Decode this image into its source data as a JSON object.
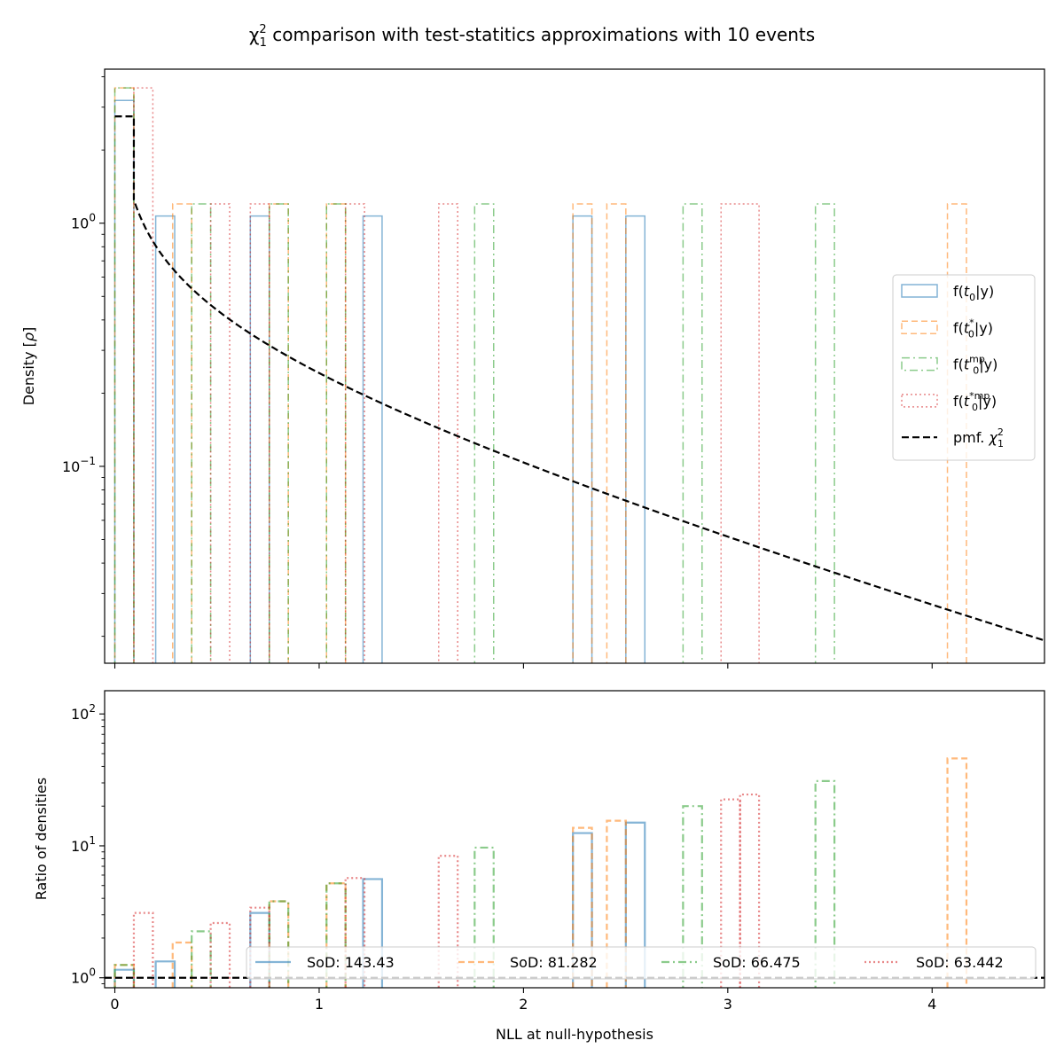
{
  "chart_data": [
    {
      "type": "histogram",
      "panel": "top",
      "title": "χ²₁ comparison with test-statitics approximations with 10 events",
      "title_parts": {
        "pre": "χ",
        "sup": "2",
        "sub": "1",
        "post": " comparison with test-statitics approximations with 10 events"
      },
      "xlabel": "",
      "ylabel": "Density [ρ]",
      "ylabel_parts": {
        "pre": "Density [",
        "sym": "ρ",
        "post": "]"
      },
      "yscale": "log",
      "xlim": [
        -0.05,
        4.55
      ],
      "ylim": [
        0.0155,
        4.3
      ],
      "x_ticks": [
        0,
        1,
        2,
        3,
        4
      ],
      "y_ticks": [
        {
          "value": 1.0,
          "base": "10",
          "exp": "0"
        },
        {
          "value": 0.1,
          "base": "10",
          "exp": "−1"
        }
      ],
      "legend_position": "center-right",
      "series": [
        {
          "name": "f(t0|y)",
          "name_parts": {
            "pre": "f(",
            "main": "t",
            "sub": "0",
            "sup": "",
            "post": "|y)"
          },
          "color": "#1f77b4",
          "dash": "solid",
          "bins": [
            [
              0.0,
              0.093,
              3.2
            ],
            [
              0.2,
              0.293,
              1.07
            ],
            [
              0.663,
              0.756,
              1.07
            ],
            [
              1.215,
              1.308,
              1.07
            ],
            [
              2.242,
              2.335,
              1.07
            ],
            [
              2.501,
              2.594,
              1.07
            ]
          ]
        },
        {
          "name": "f(t0*|y)",
          "name_parts": {
            "pre": "f(",
            "main": "t",
            "sub": "0",
            "sup": "*",
            "post": "|y)"
          },
          "color": "#ff7f0e",
          "dash": "dashed",
          "bins": [
            [
              0.0,
              0.093,
              3.6
            ],
            [
              0.283,
              0.376,
              1.2
            ],
            [
              0.756,
              0.849,
              1.2
            ],
            [
              1.036,
              1.129,
              1.2
            ],
            [
              2.242,
              2.335,
              1.2
            ],
            [
              2.408,
              2.501,
              1.2
            ],
            [
              4.075,
              4.168,
              1.2
            ]
          ]
        },
        {
          "name": "f(t0mp|y)",
          "name_parts": {
            "pre": "f(",
            "main": "t",
            "sub": "0",
            "sup": "mp",
            "post": "|y)"
          },
          "color": "#2ca02c",
          "dash": "dashdot",
          "bins": [
            [
              0.0,
              0.093,
              3.6
            ],
            [
              0.376,
              0.469,
              1.2
            ],
            [
              0.756,
              0.849,
              1.2
            ],
            [
              1.036,
              1.129,
              1.2
            ],
            [
              1.761,
              1.854,
              1.2
            ],
            [
              2.781,
              2.874,
              1.2
            ],
            [
              3.429,
              3.522,
              1.2
            ]
          ]
        },
        {
          "name": "f(t0*mp|y)",
          "name_parts": {
            "pre": "f(",
            "main": "t",
            "sub": "0",
            "sup": "*mp",
            "post": "|y)"
          },
          "color": "#d62728",
          "dash": "dotted",
          "bins": [
            [
              0.093,
              0.186,
              3.6
            ],
            [
              0.469,
              0.562,
              1.2
            ],
            [
              0.663,
              0.756,
              1.2
            ],
            [
              1.129,
              1.222,
              1.2
            ],
            [
              1.585,
              1.678,
              1.2
            ],
            [
              2.967,
              3.153,
              1.2
            ]
          ]
        }
      ],
      "reference": {
        "name": "pmf. χ²₁",
        "name_parts": {
          "pre": "pmf. ",
          "main": "χ",
          "sub": "1",
          "sup": "2",
          "post": ""
        },
        "color": "#000000",
        "dash": "dashed",
        "plateau_value": 2.75,
        "plateau_end": 0.093,
        "curve": "chi2_pdf_df1"
      }
    },
    {
      "type": "histogram",
      "panel": "bottom",
      "xlabel": "NLL at null-hypothesis",
      "ylabel": "Ratio of densities",
      "yscale": "log",
      "xlim": [
        -0.05,
        4.55
      ],
      "ylim": [
        0.84,
        150
      ],
      "x_ticks": [
        0,
        1,
        2,
        3,
        4
      ],
      "y_ticks": [
        {
          "value": 1,
          "base": "10",
          "exp": "0"
        },
        {
          "value": 10,
          "base": "10",
          "exp": "1"
        },
        {
          "value": 100,
          "base": "10",
          "exp": "2"
        }
      ],
      "baseline": 1,
      "legend_position": "bottom-right",
      "series": [
        {
          "name": "SoD: 143.43",
          "color": "#1f77b4",
          "dash": "solid",
          "bins": [
            [
              0.0,
              0.093,
              1.15
            ],
            [
              0.2,
              0.293,
              1.33
            ],
            [
              0.663,
              0.756,
              3.1
            ],
            [
              1.215,
              1.308,
              5.6
            ],
            [
              2.242,
              2.335,
              12.5
            ],
            [
              2.501,
              2.594,
              15.0
            ]
          ]
        },
        {
          "name": "SoD: 81.282",
          "color": "#ff7f0e",
          "dash": "dashed",
          "bins": [
            [
              0.0,
              0.093,
              1.25
            ],
            [
              0.283,
              0.376,
              1.85
            ],
            [
              0.756,
              0.849,
              3.8
            ],
            [
              1.036,
              1.129,
              5.2
            ],
            [
              2.242,
              2.335,
              13.7
            ],
            [
              2.408,
              2.501,
              15.5
            ],
            [
              4.075,
              4.168,
              46.0
            ]
          ]
        },
        {
          "name": "SoD: 66.475",
          "color": "#2ca02c",
          "dash": "dashdot",
          "bins": [
            [
              0.0,
              0.093,
              1.25
            ],
            [
              0.376,
              0.469,
              2.25
            ],
            [
              0.756,
              0.849,
              3.8
            ],
            [
              1.036,
              1.129,
              5.2
            ],
            [
              1.761,
              1.854,
              9.7
            ],
            [
              2.781,
              2.874,
              20.0
            ],
            [
              3.429,
              3.522,
              31.0
            ]
          ]
        },
        {
          "name": "SoD: 63.442",
          "color": "#d62728",
          "dash": "dotted",
          "bins": [
            [
              0.093,
              0.186,
              3.1
            ],
            [
              0.469,
              0.562,
              2.6
            ],
            [
              0.663,
              0.756,
              3.4
            ],
            [
              1.129,
              1.222,
              5.7
            ],
            [
              1.585,
              1.678,
              8.4
            ],
            [
              2.967,
              3.06,
              22.5
            ],
            [
              3.06,
              3.153,
              24.5
            ]
          ]
        }
      ]
    }
  ]
}
